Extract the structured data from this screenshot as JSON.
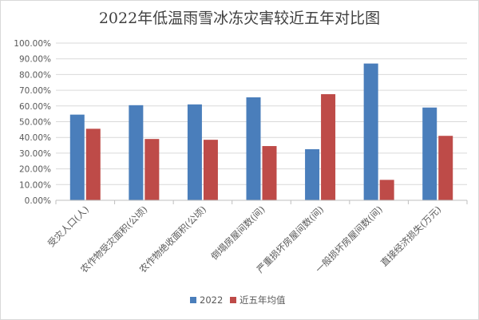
{
  "chart_data": {
    "type": "bar",
    "title": "2022年低温雨雪冰冻灾害较近五年对比图",
    "xlabel": "",
    "ylabel": "",
    "ylim": [
      0,
      100
    ],
    "y_ticks": [
      "0.00%",
      "10.00%",
      "20.00%",
      "30.00%",
      "40.00%",
      "50.00%",
      "60.00%",
      "70.00%",
      "80.00%",
      "90.00%",
      "100.00%"
    ],
    "categories": [
      "受灾人口(人)",
      "农作物受灾面积(公顷)",
      "农作物绝收面积(公顷)",
      "倒塌房屋间数(间)",
      "严重损坏房屋间数(间)",
      "一般损坏房屋间数(间)",
      "直接经济损失(万元)"
    ],
    "series": [
      {
        "name": "2022",
        "color": "#4a7ebb",
        "values": [
          54.5,
          60.5,
          61.0,
          65.5,
          32.5,
          87.0,
          59.0
        ]
      },
      {
        "name": "近五年均值",
        "color": "#be4b48",
        "values": [
          45.5,
          39.0,
          38.5,
          34.5,
          67.5,
          13.0,
          41.0
        ]
      }
    ],
    "grid": true,
    "legend_position": "bottom"
  }
}
